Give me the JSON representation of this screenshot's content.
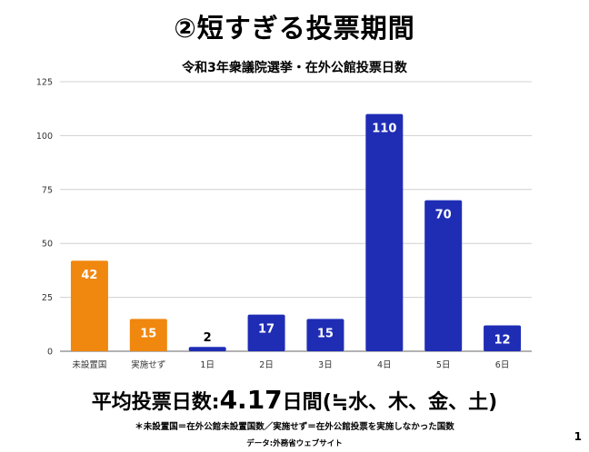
{
  "slide": {
    "title": "②短すぎる投票期間",
    "summary_label": "平均投票日数",
    "summary_colon": ":",
    "summary_value": "4.17",
    "summary_unit": "日間",
    "summary_note": "(≒水、木、金、土)",
    "footnote": "＊未設置国＝在外公館未設置国数／実施せず＝在外公館投票を実施しなかった国数",
    "source": "データ:外務省ウェブサイト",
    "page_number": "1"
  },
  "chart_data": {
    "type": "bar",
    "title": "令和3年衆議院選挙・在外公館投票日数",
    "categories": [
      "未設置国",
      "実施せず",
      "1日",
      "2日",
      "3日",
      "4日",
      "5日",
      "6日"
    ],
    "values": [
      42,
      15,
      2,
      17,
      15,
      110,
      70,
      12
    ],
    "bar_colors": [
      "#F0870F",
      "#F0870F",
      "#1F2DB5",
      "#1F2DB5",
      "#1F2DB5",
      "#1F2DB5",
      "#1F2DB5",
      "#1F2DB5"
    ],
    "data_label_colors": [
      "#ffffff",
      "#ffffff",
      "#000000",
      "#ffffff",
      "#ffffff",
      "#ffffff",
      "#ffffff",
      "#ffffff"
    ],
    "ylim": [
      0,
      125
    ],
    "yticks": [
      0,
      25,
      50,
      75,
      100,
      125
    ],
    "grid": true,
    "xlabel": "",
    "ylabel": ""
  }
}
